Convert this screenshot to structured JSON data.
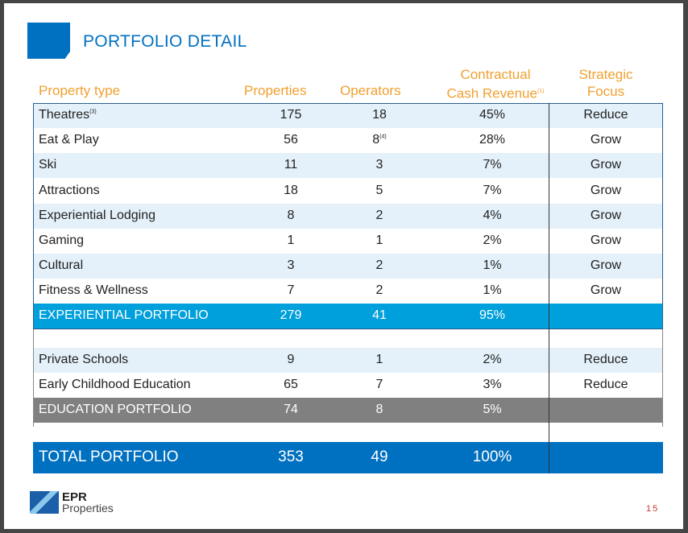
{
  "title": "PORTFOLIO DETAIL",
  "headers": {
    "type": "Property type",
    "properties": "Properties",
    "operators": "Operators",
    "revenue_line1": "Contractual",
    "revenue_line2": "Cash Revenue",
    "revenue_note": "(1)",
    "focus_line1": "Strategic",
    "focus_line2": "Focus"
  },
  "rows": [
    {
      "type": "Theatres",
      "note": "(3)",
      "properties": "175",
      "operators": "18",
      "op_note": "",
      "revenue": "45%",
      "focus": "Reduce"
    },
    {
      "type": "Eat & Play",
      "note": "",
      "properties": "56",
      "operators": "8",
      "op_note": "(4)",
      "revenue": "28%",
      "focus": "Grow"
    },
    {
      "type": "Ski",
      "note": "",
      "properties": "11",
      "operators": "3",
      "op_note": "",
      "revenue": "7%",
      "focus": "Grow"
    },
    {
      "type": "Attractions",
      "note": "",
      "properties": "18",
      "operators": "5",
      "op_note": "",
      "revenue": "7%",
      "focus": "Grow"
    },
    {
      "type": "Experiential Lodging",
      "note": "",
      "properties": "8",
      "operators": "2",
      "op_note": "",
      "revenue": "4%",
      "focus": "Grow"
    },
    {
      "type": "Gaming",
      "note": "",
      "properties": "1",
      "operators": "1",
      "op_note": "",
      "revenue": "2%",
      "focus": "Grow"
    },
    {
      "type": "Cultural",
      "note": "",
      "properties": "3",
      "operators": "2",
      "op_note": "",
      "revenue": "1%",
      "focus": "Grow"
    },
    {
      "type": "Fitness & Wellness",
      "note": "",
      "properties": "7",
      "operators": "2",
      "op_note": "",
      "revenue": "1%",
      "focus": "Grow"
    }
  ],
  "experiential": {
    "type": "EXPERIENTIAL PORTFOLIO",
    "properties": "279",
    "operators": "41",
    "revenue": "95%",
    "color": "#00A0DC"
  },
  "edu_rows": [
    {
      "type": "Private Schools",
      "properties": "9",
      "operators": "1",
      "revenue": "2%",
      "focus": "Reduce"
    },
    {
      "type": "Early Childhood Education",
      "properties": "65",
      "operators": "7",
      "revenue": "3%",
      "focus": "Reduce"
    }
  ],
  "education": {
    "type": "EDUCATION PORTFOLIO",
    "properties": "74",
    "operators": "8",
    "revenue": "5%",
    "color": "#808080"
  },
  "total": {
    "type": "TOTAL PORTFOLIO",
    "properties": "353",
    "operators": "49",
    "revenue": "100%",
    "color": "#0070C0"
  },
  "logo": {
    "line1": "EPR",
    "line2": "Properties"
  },
  "page_number": "15"
}
